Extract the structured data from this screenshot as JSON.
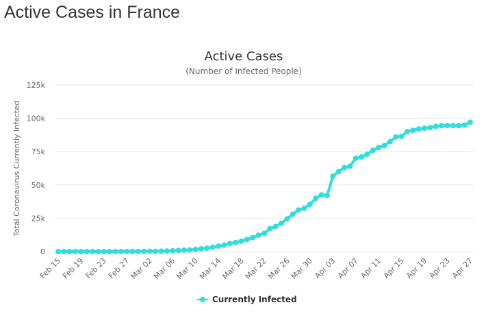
{
  "page": {
    "heading": "Active Cases in France"
  },
  "colors": {
    "series": "#33dddd",
    "grid": "#e6e6e6",
    "text": "#333333",
    "axis_text": "#666666"
  },
  "chart_data": {
    "type": "line",
    "title": "Active Cases",
    "subtitle": "(Number of Infected People)",
    "xlabel": "",
    "ylabel": "Total Coronavirus Currently Infected",
    "x": [
      "Feb 15",
      "Feb 16",
      "Feb 17",
      "Feb 18",
      "Feb 19",
      "Feb 20",
      "Feb 21",
      "Feb 22",
      "Feb 23",
      "Feb 24",
      "Feb 25",
      "Feb 26",
      "Feb 27",
      "Feb 28",
      "Feb 29",
      "Mar 01",
      "Mar 02",
      "Mar 03",
      "Mar 04",
      "Mar 05",
      "Mar 06",
      "Mar 07",
      "Mar 08",
      "Mar 09",
      "Mar 10",
      "Mar 11",
      "Mar 12",
      "Mar 13",
      "Mar 14",
      "Mar 15",
      "Mar 16",
      "Mar 17",
      "Mar 18",
      "Mar 19",
      "Mar 20",
      "Mar 21",
      "Mar 22",
      "Mar 23",
      "Mar 24",
      "Mar 25",
      "Mar 26",
      "Mar 27",
      "Mar 28",
      "Mar 29",
      "Mar 30",
      "Mar 31",
      "Apr 01",
      "Apr 02",
      "Apr 03",
      "Apr 04",
      "Apr 05",
      "Apr 06",
      "Apr 07",
      "Apr 08",
      "Apr 09",
      "Apr 10",
      "Apr 11",
      "Apr 12",
      "Apr 13",
      "Apr 14",
      "Apr 15",
      "Apr 16",
      "Apr 17",
      "Apr 18",
      "Apr 19",
      "Apr 20",
      "Apr 21",
      "Apr 22",
      "Apr 23",
      "Apr 24",
      "Apr 25",
      "Apr 26",
      "Apr 27"
    ],
    "x_tick_labels": [
      "Feb 15",
      "Feb 19",
      "Feb 23",
      "Feb 27",
      "Mar 02",
      "Mar 06",
      "Mar 10",
      "Mar 14",
      "Mar 18",
      "Mar 22",
      "Mar 26",
      "Mar 30",
      "Apr 03",
      "Apr 07",
      "Apr 11",
      "Apr 15",
      "Apr 19",
      "Apr 23",
      "Apr 27"
    ],
    "series": [
      {
        "name": "Currently Infected",
        "values": [
          7,
          7,
          7,
          7,
          7,
          8,
          8,
          8,
          8,
          8,
          9,
          24,
          44,
          84,
          90,
          116,
          174,
          200,
          260,
          360,
          560,
          800,
          1050,
          1200,
          1600,
          2050,
          2500,
          3250,
          4100,
          4850,
          6000,
          6800,
          7750,
          9000,
          10500,
          12300,
          13600,
          17200,
          18800,
          21200,
          24500,
          28000,
          31200,
          32500,
          35500,
          40000,
          42500,
          42000,
          56500,
          60000,
          63000,
          64000,
          70000,
          71000,
          73000,
          76000,
          78000,
          79500,
          82500,
          86000,
          86500,
          90000,
          91000,
          92000,
          92500,
          93000,
          94000,
          94500,
          94500,
          94500,
          94500,
          95000,
          97000
        ]
      }
    ],
    "y_tick_labels": [
      "0",
      "25k",
      "50k",
      "75k",
      "100k",
      "125k"
    ],
    "ylim": [
      0,
      125000
    ],
    "grid": true,
    "legend": "bottom-center"
  }
}
